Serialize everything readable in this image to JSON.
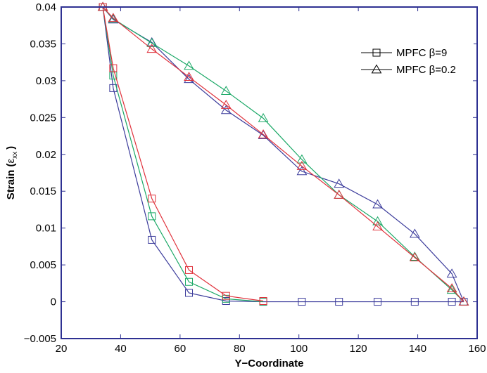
{
  "chart_data": {
    "type": "line",
    "title": "",
    "xlabel": "Y−Coordinate",
    "ylabel_main": "Strain (",
    "ylabel_symbol": "ε",
    "ylabel_sub": "xx",
    "ylabel_close": ")",
    "xlim": [
      20,
      160
    ],
    "ylim": [
      -0.005,
      0.04
    ],
    "xticks": [
      20,
      40,
      60,
      80,
      100,
      120,
      140,
      160
    ],
    "xtick_labels": [
      "20",
      "40",
      "60",
      "80",
      "100",
      "120",
      "140",
      "160"
    ],
    "yticks": [
      -0.005,
      0,
      0.005,
      0.01,
      0.015,
      0.02,
      0.025,
      0.03,
      0.035,
      0.04
    ],
    "ytick_labels": [
      "−0.005",
      "0",
      "0.005",
      "0.01",
      "0.015",
      "0.02",
      "0.025",
      "0.03",
      "0.035",
      "0.04"
    ],
    "grid": false,
    "legend_position": "top-right",
    "legend": [
      {
        "label": "MPFC β=9",
        "marker": "square"
      },
      {
        "label": "MPFC β=0.2",
        "marker": "triangle"
      }
    ],
    "series": [
      {
        "name": "blue-square",
        "color": "#3b3b9b",
        "marker": "square",
        "x": [
          34,
          37.5,
          50.5,
          63,
          75.5,
          88,
          101,
          113.5,
          126.5,
          139,
          151.5,
          155.5
        ],
        "y": [
          0.04,
          0.029,
          0.0084,
          0.0012,
          0.0001,
          0.0,
          0.0,
          0.0,
          0.0,
          0.0,
          0.0,
          0.0
        ]
      },
      {
        "name": "green-square",
        "color": "#1aa866",
        "marker": "square",
        "x": [
          34,
          37.5,
          50.5,
          63,
          75.5,
          88
        ],
        "y": [
          0.04,
          0.0307,
          0.0116,
          0.0027,
          0.0004,
          0.0
        ]
      },
      {
        "name": "red-square",
        "color": "#e0323c",
        "marker": "square",
        "x": [
          34,
          37.5,
          50.5,
          63,
          75.5,
          88
        ],
        "y": [
          0.04,
          0.0317,
          0.014,
          0.0043,
          0.0008,
          0.0001
        ]
      },
      {
        "name": "blue-triangle",
        "color": "#3b3b9b",
        "marker": "triangle",
        "x": [
          34,
          37.5,
          50.5,
          63,
          75.5,
          88,
          101,
          113.5,
          126.5,
          139,
          151.5,
          155.5
        ],
        "y": [
          0.04,
          0.0383,
          0.0352,
          0.0302,
          0.026,
          0.0226,
          0.0177,
          0.016,
          0.0132,
          0.0092,
          0.0038,
          0.0
        ]
      },
      {
        "name": "green-triangle",
        "color": "#1aa866",
        "marker": "triangle",
        "x": [
          34,
          37.5,
          50.5,
          63,
          75.5,
          88,
          101,
          113.5,
          126.5,
          139,
          151.5,
          155.5
        ],
        "y": [
          0.04,
          0.0384,
          0.0351,
          0.032,
          0.0286,
          0.0249,
          0.0193,
          0.0145,
          0.0109,
          0.0061,
          0.0016,
          0.0
        ]
      },
      {
        "name": "red-triangle",
        "color": "#e0323c",
        "marker": "triangle",
        "x": [
          34,
          37.5,
          50.5,
          63,
          75.5,
          88,
          101,
          113.5,
          126.5,
          139,
          151.5,
          155.5
        ],
        "y": [
          0.04,
          0.0385,
          0.0343,
          0.0305,
          0.0267,
          0.0227,
          0.0184,
          0.0145,
          0.0102,
          0.006,
          0.0018,
          0.0
        ]
      }
    ],
    "colors": {
      "axis": "#2e3192",
      "text": "#000000"
    }
  }
}
